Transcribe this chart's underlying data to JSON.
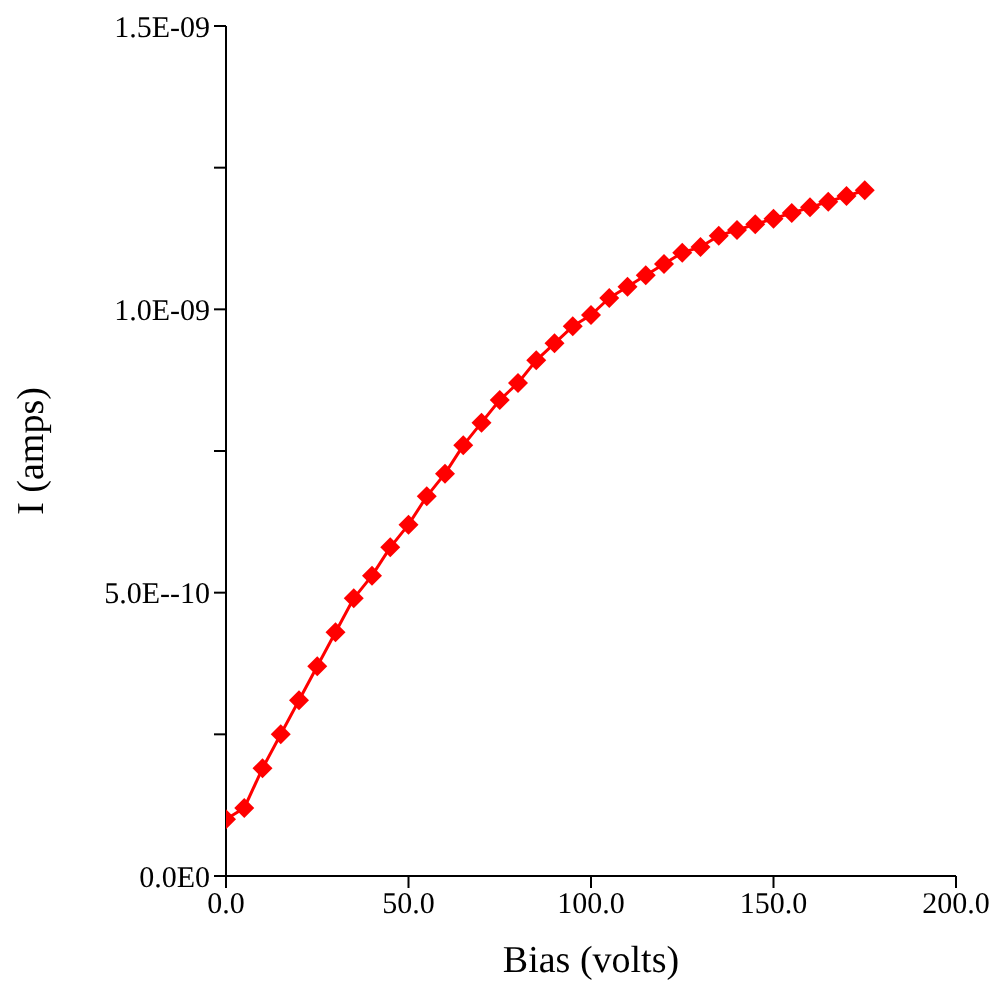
{
  "chart_data": {
    "type": "line",
    "xlabel": "Bias (volts)",
    "ylabel": "I (amps)",
    "x": [
      0,
      5,
      10,
      15,
      20,
      25,
      30,
      35,
      40,
      45,
      50,
      55,
      60,
      65,
      70,
      75,
      80,
      85,
      90,
      95,
      100,
      105,
      110,
      115,
      120,
      125,
      130,
      135,
      140,
      145,
      150,
      155,
      160,
      165,
      170,
      175
    ],
    "series": [
      {
        "color": "#ff0000",
        "values": [
          1e-10,
          1.2e-10,
          1.9e-10,
          2.5e-10,
          3.1e-10,
          3.7e-10,
          4.3e-10,
          4.9e-10,
          5.3e-10,
          5.8e-10,
          6.2e-10,
          6.7e-10,
          7.1e-10,
          7.6e-10,
          8e-10,
          8.4e-10,
          8.7e-10,
          9.1e-10,
          9.4e-10,
          9.7e-10,
          9.9e-10,
          1.02e-09,
          1.04e-09,
          1.06e-09,
          1.08e-09,
          1.1e-09,
          1.11e-09,
          1.13e-09,
          1.14e-09,
          1.15e-09,
          1.16e-09,
          1.17e-09,
          1.18e-09,
          1.19e-09,
          1.2e-09,
          1.21e-09
        ]
      }
    ],
    "xlim": [
      0,
      200
    ],
    "xticks": [
      {
        "value": 0,
        "label": "0.0"
      },
      {
        "value": 50,
        "label": "50.0"
      },
      {
        "value": 100,
        "label": "100.0"
      },
      {
        "value": 150,
        "label": "150.0"
      },
      {
        "value": 200,
        "label": "200.0"
      }
    ],
    "ylim": [
      0,
      1.5e-09
    ],
    "yticks": [
      {
        "value": 0,
        "label": "0.0E0"
      },
      {
        "value": 2.5e-10,
        "label": null
      },
      {
        "value": 5e-10,
        "label": "5.0E--10"
      },
      {
        "value": 7.5e-10,
        "label": null
      },
      {
        "value": 1e-09,
        "label": "1.0E-09"
      },
      {
        "value": 1.25e-09,
        "label": null
      },
      {
        "value": 1.5e-09,
        "label": "1.5E-09"
      }
    ],
    "marker": "diamond",
    "line_style": "solid",
    "grid": false,
    "legend": false
  }
}
